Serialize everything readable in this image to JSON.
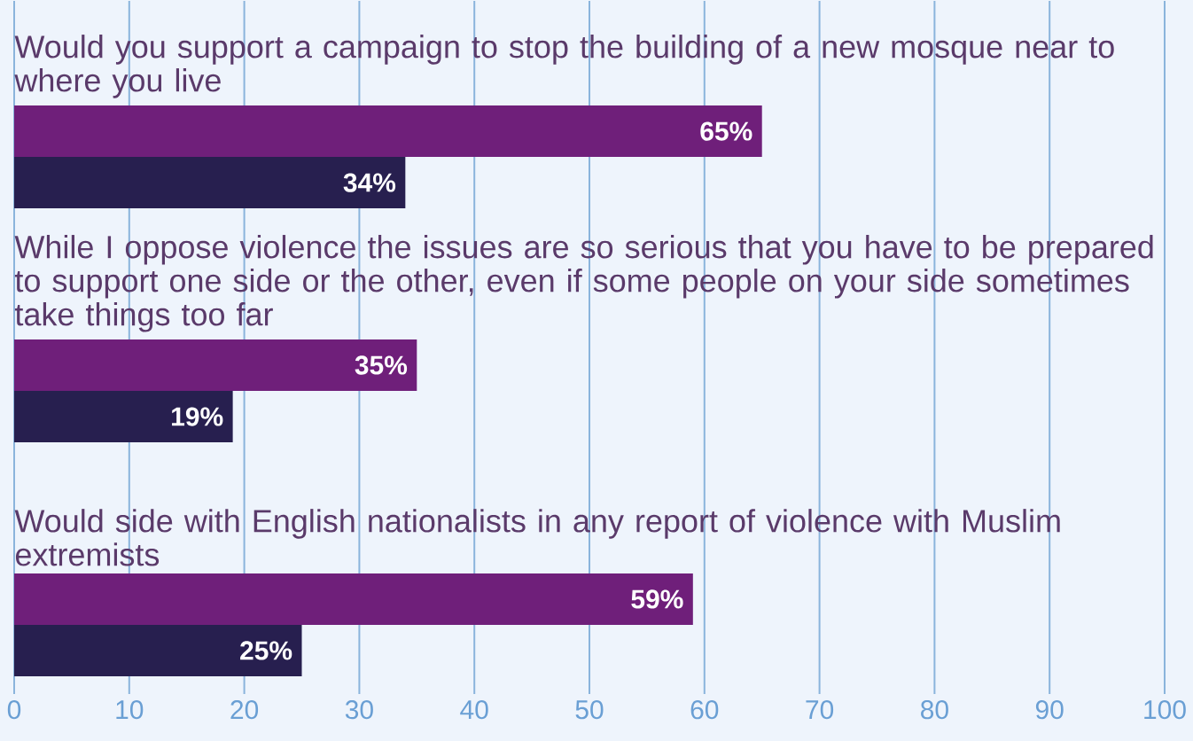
{
  "chart_data": {
    "type": "bar",
    "orientation": "horizontal",
    "categories": [
      "Would you support a campaign to stop the building of a new mosque near to where you live",
      "While I oppose violence the issues are so serious that you have to be prepared to support one side or the other, even if some people on your side sometimes take things too far",
      "Would side with English nationalists in any report of violence with Muslim extremists"
    ],
    "series": [
      {
        "color": "#6f1f7a",
        "values": [
          65,
          35,
          59
        ],
        "value_labels": [
          "65%",
          "35%",
          "59%"
        ]
      },
      {
        "color": "#271f4f",
        "values": [
          34,
          19,
          25
        ],
        "value_labels": [
          "34%",
          "19%",
          "25%"
        ]
      }
    ],
    "xlim": [
      0,
      100
    ],
    "xticks": [
      0,
      10,
      20,
      30,
      40,
      50,
      60,
      70,
      80,
      90,
      100
    ],
    "grid": "x"
  }
}
